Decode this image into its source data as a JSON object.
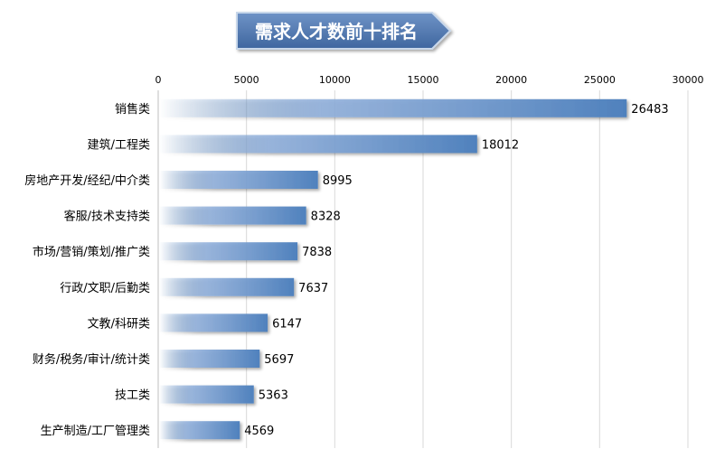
{
  "chart_data": {
    "type": "bar",
    "orientation": "horizontal",
    "title": "需求人才数前十排名",
    "categories": [
      "销售类",
      "建筑/工程类",
      "房地产开发/经纪/中介类",
      "客服/技术支持类",
      "市场/营销/策划/推广类",
      "行政/文职/后勤类",
      "文教/科研类",
      "财务/税务/审计/统计类",
      "技工类",
      "生产制造/工厂管理类"
    ],
    "values": [
      26483,
      18012,
      8995,
      8328,
      7838,
      7637,
      6147,
      5697,
      5363,
      4569
    ],
    "xlim": [
      0,
      30000
    ],
    "xticks": [
      0,
      5000,
      10000,
      15000,
      20000,
      25000,
      30000
    ],
    "x_axis_position": "top",
    "data_labels": true,
    "grid": true,
    "legend": "none"
  },
  "colors": {
    "bar": "#4f81bd",
    "title_fill": "#4a6fa5",
    "grid": "#d9d9d9"
  }
}
